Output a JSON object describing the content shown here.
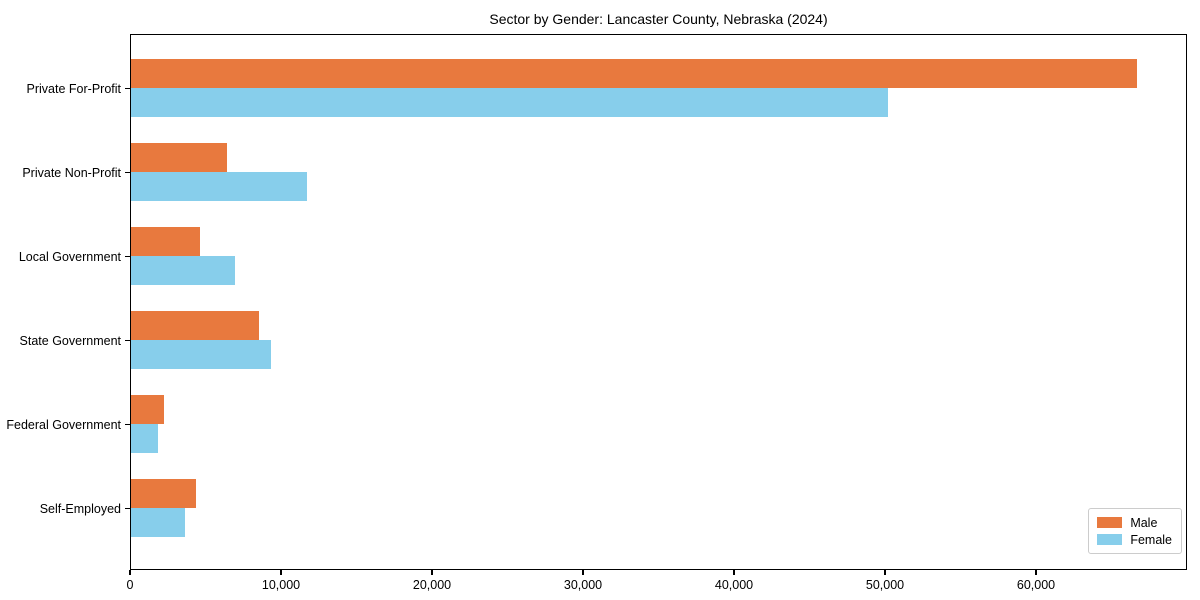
{
  "chart_data": {
    "type": "bar",
    "orientation": "horizontal",
    "title": "Sector by Gender: Lancaster County, Nebraska (2024)",
    "categories": [
      "Private For-Profit",
      "Private Non-Profit",
      "Local Government",
      "State Government",
      "Federal Government",
      "Self-Employed"
    ],
    "series": [
      {
        "name": "Male",
        "color": "#E8793E",
        "values": [
          66650,
          6350,
          4550,
          8500,
          2200,
          4300
        ]
      },
      {
        "name": "Female",
        "color": "#87CEEB",
        "values": [
          50100,
          11650,
          6900,
          9300,
          1800,
          3550
        ]
      }
    ],
    "xlabel": "",
    "ylabel": "",
    "xlim": [
      0,
      70000
    ],
    "xticks": [
      0,
      10000,
      20000,
      30000,
      40000,
      50000,
      60000
    ],
    "xtick_labels": [
      "0",
      "10,000",
      "20,000",
      "30,000",
      "40,000",
      "50,000",
      "60,000"
    ],
    "grid": false,
    "legend": {
      "position": "lower right",
      "entries": [
        "Male",
        "Female"
      ]
    },
    "colors": {
      "spine": "#000000",
      "legend_border": "#cccccc",
      "background": "#ffffff"
    }
  }
}
